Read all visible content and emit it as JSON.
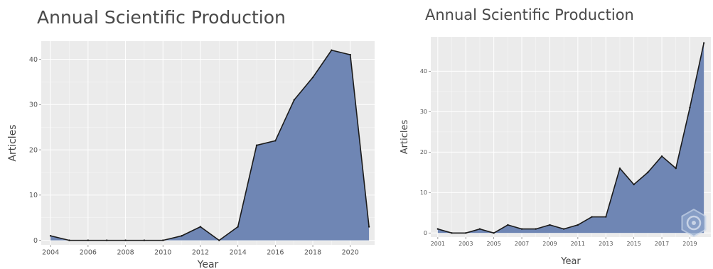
{
  "colors": {
    "panel_background": "#ebebeb",
    "gridline": "#ffffff",
    "area_fill": "#6f86b4",
    "line": "#1b1b1b",
    "watermark": "#8fa7cc"
  },
  "chart_data": [
    {
      "type": "area",
      "title": "Annual Scientific Production",
      "xlabel": "Year",
      "ylabel": "Articles",
      "x": [
        2004,
        2005,
        2006,
        2007,
        2008,
        2009,
        2010,
        2011,
        2012,
        2013,
        2014,
        2015,
        2016,
        2017,
        2018,
        2019,
        2020,
        2021
      ],
      "values": [
        1,
        0,
        0,
        0,
        0,
        0,
        0,
        1,
        3,
        0,
        3,
        21,
        22,
        31,
        36,
        42,
        41,
        3
      ],
      "xticks": [
        2004,
        2006,
        2008,
        2010,
        2012,
        2014,
        2016,
        2018,
        2020
      ],
      "xtick_labels": [
        "2004",
        "2006",
        "2008",
        "2010",
        "2012",
        "2014",
        "2016",
        "2018",
        "2020"
      ],
      "yticks": [
        0,
        10,
        20,
        30,
        40
      ],
      "ytick_labels": [
        "0",
        "10",
        "20",
        "30",
        "40"
      ],
      "xlim": [
        2003.5,
        2021.3
      ],
      "ylim": [
        -1,
        44
      ],
      "grid": true,
      "legend": false
    },
    {
      "type": "area",
      "title": "Annual Scientific Production",
      "xlabel": "Year",
      "ylabel": "Articles",
      "x": [
        2001,
        2002,
        2003,
        2004,
        2005,
        2006,
        2007,
        2008,
        2009,
        2010,
        2011,
        2012,
        2013,
        2014,
        2015,
        2016,
        2017,
        2018,
        2019,
        2020
      ],
      "values": [
        1,
        0,
        0,
        1,
        0,
        2,
        1,
        1,
        2,
        1,
        2,
        4,
        4,
        16,
        12,
        15,
        19,
        16,
        31,
        47
      ],
      "xticks": [
        2001,
        2003,
        2005,
        2007,
        2009,
        2011,
        2013,
        2015,
        2017,
        2019
      ],
      "xtick_labels": [
        "2001",
        "2003",
        "2005",
        "2007",
        "2009",
        "2011",
        "2013",
        "2015",
        "2017",
        "2019"
      ],
      "yticks": [
        0,
        10,
        20,
        30,
        40
      ],
      "ytick_labels": [
        "0",
        "10",
        "20",
        "30",
        "40"
      ],
      "xlim": [
        2000.5,
        2020.5
      ],
      "ylim": [
        -1,
        48.5
      ],
      "grid": true,
      "legend": false,
      "watermark_icon": "bibliometrix-logo-icon"
    }
  ]
}
